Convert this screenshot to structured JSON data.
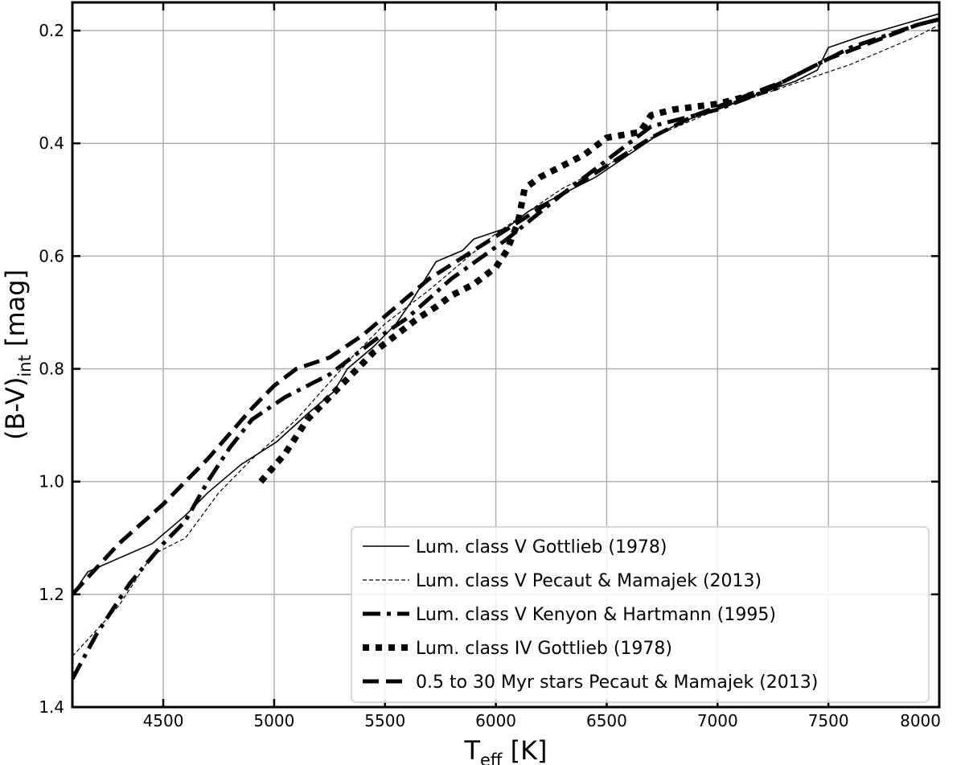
{
  "chart_data": {
    "type": "line",
    "title": "",
    "xlabel": {
      "main": "T",
      "sub": "eff",
      "rest": " [K]"
    },
    "ylabel": {
      "main": "(B-V)",
      "sub": "int",
      "rest": " [mag]"
    },
    "xlim": [
      4090,
      8000
    ],
    "ylim": [
      1.4,
      0.15
    ],
    "y_inverted": true,
    "grid": true,
    "x_ticks": [
      "4500",
      "5000",
      "5500",
      "6000",
      "6500",
      "7000",
      "7500",
      "8000"
    ],
    "y_ticks": [
      "0.2",
      "0.4",
      "0.6",
      "0.8",
      "1.0",
      "1.2",
      "1.4"
    ],
    "legend_position": "bottom-right",
    "series": [
      {
        "name": "Lum. class V Gottlieb (1978)",
        "style": "solid-thin",
        "x": [
          4090,
          4160,
          4450,
          4600,
          4700,
          4850,
          5010,
          5150,
          5270,
          5330,
          5450,
          5550,
          5620,
          5730,
          5850,
          5900,
          6050,
          6150,
          6300,
          6450,
          6600,
          6750,
          6850,
          7000,
          7200,
          7350,
          7450,
          7500,
          7650,
          8000
        ],
        "y": [
          1.2,
          1.16,
          1.11,
          1.06,
          1.02,
          0.97,
          0.93,
          0.88,
          0.84,
          0.8,
          0.76,
          0.72,
          0.68,
          0.61,
          0.59,
          0.57,
          0.55,
          0.52,
          0.49,
          0.46,
          0.42,
          0.38,
          0.36,
          0.34,
          0.31,
          0.29,
          0.27,
          0.23,
          0.21,
          0.17
        ]
      },
      {
        "name": "Lum. class V Pecaut & Mamajek (2013)",
        "style": "dashed-thin",
        "x": [
          4090,
          4300,
          4450,
          4600,
          4750,
          4900,
          5100,
          5350,
          5500,
          5700,
          6000,
          6300,
          6500,
          6700,
          7000,
          7300,
          7600,
          7900,
          8000
        ],
        "y": [
          1.31,
          1.22,
          1.13,
          1.1,
          1.02,
          0.96,
          0.89,
          0.78,
          0.72,
          0.66,
          0.56,
          0.48,
          0.44,
          0.39,
          0.34,
          0.3,
          0.26,
          0.21,
          0.19
        ]
      },
      {
        "name": "Lum. class V Kenyon & Hartmann (1995)",
        "style": "dashdot-thick",
        "x": [
          4090,
          4200,
          4350,
          4500,
          4600,
          4700,
          4800,
          4900,
          5050,
          5250,
          5450,
          5600,
          5800,
          6050,
          6300,
          6500,
          6700,
          6800,
          7000,
          7200,
          7400,
          7600,
          7900,
          8000
        ],
        "y": [
          1.35,
          1.27,
          1.18,
          1.11,
          1.07,
          1.0,
          0.94,
          0.89,
          0.85,
          0.81,
          0.75,
          0.71,
          0.64,
          0.57,
          0.49,
          0.43,
          0.37,
          0.36,
          0.34,
          0.31,
          0.27,
          0.23,
          0.19,
          0.18
        ]
      },
      {
        "name": "Lum. class IV Gottlieb (1978)",
        "style": "dotted-thick",
        "x": [
          4940,
          5050,
          5150,
          5250,
          5350,
          5450,
          5550,
          5650,
          5730,
          5800,
          5900,
          6000,
          6050,
          6100,
          6130,
          6200,
          6300,
          6400,
          6500,
          6650,
          6700,
          6800,
          7000,
          7100,
          7270
        ],
        "y": [
          1.0,
          0.95,
          0.89,
          0.85,
          0.81,
          0.77,
          0.74,
          0.71,
          0.69,
          0.67,
          0.65,
          0.62,
          0.59,
          0.54,
          0.48,
          0.46,
          0.44,
          0.42,
          0.39,
          0.38,
          0.35,
          0.34,
          0.33,
          0.32,
          0.3
        ]
      },
      {
        "name": "0.5 to 30 Myr stars Pecaut & Mamajek (2013)",
        "style": "dashed-thick",
        "x": [
          4090,
          4300,
          4500,
          4700,
          4900,
          5000,
          5100,
          5250,
          5400,
          5550,
          5700,
          5900,
          6100,
          6300,
          6500,
          6700,
          6900,
          7100,
          7300,
          7500,
          7700,
          7900,
          8000
        ],
        "y": [
          1.2,
          1.11,
          1.04,
          0.96,
          0.87,
          0.83,
          0.8,
          0.78,
          0.74,
          0.69,
          0.64,
          0.59,
          0.54,
          0.49,
          0.44,
          0.39,
          0.35,
          0.32,
          0.29,
          0.25,
          0.22,
          0.19,
          0.18
        ]
      }
    ]
  }
}
